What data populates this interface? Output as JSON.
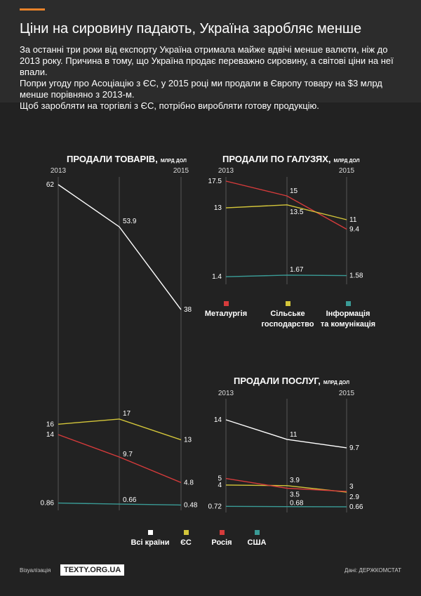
{
  "header": {
    "title": "Ціни на сировину падають, Україна заробляє менше",
    "intro": [
      "За останні три роки від експорту Україна отримала майже вдвічі менше валюти, ніж до 2013 року. Причина в тому, що Україна продає переважно сировину, а світові ціни на неї впали.",
      "Попри угоду про Асоціацію з ЄС, у 2015 році ми продали в Європу товару на $3 млрд менше порівняно з 2013-м.",
      "Щоб заробляти на торгівлі з ЄС, потрібно виробляти готову продукцію."
    ]
  },
  "colors": {
    "accent": "#e8822a",
    "white": "#ffffff",
    "yellow": "#d4c63a",
    "red": "#d63b3b",
    "teal": "#3a9b96"
  },
  "chart_data": [
    {
      "type": "line",
      "title": "ПРОДАЛИ ТОВАРІВ,",
      "unit": "МЛРД ДОЛ",
      "x": [
        "2013",
        "2014",
        "2015"
      ],
      "x_labels": [
        "2013",
        "",
        "2015"
      ],
      "ylim": [
        0,
        64
      ],
      "series": [
        {
          "name": "Всі країни",
          "color": "#ffffff",
          "values": [
            62,
            53.9,
            38
          ]
        },
        {
          "name": "ЄС",
          "color": "#d4c63a",
          "values": [
            16,
            17,
            13
          ]
        },
        {
          "name": "Росія",
          "color": "#d63b3b",
          "values": [
            14,
            9.7,
            4.8
          ]
        },
        {
          "name": "США",
          "color": "#3a9b96",
          "values": [
            0.86,
            0.66,
            0.48
          ]
        }
      ]
    },
    {
      "type": "line",
      "title": "ПРОДАЛИ ПО ГАЛУЗЯХ,",
      "unit": "МЛРД ДОЛ",
      "x": [
        "2013",
        "2014",
        "2015"
      ],
      "x_labels": [
        "2013",
        "",
        "2015"
      ],
      "ylim": [
        0,
        18.5
      ],
      "series": [
        {
          "name": "Металургія",
          "color": "#d63b3b",
          "values": [
            17.5,
            15,
            9.4
          ]
        },
        {
          "name": "Сільське господарство",
          "color": "#d4c63a",
          "values": [
            13,
            13.5,
            11
          ]
        },
        {
          "name": "Інформація та комунікація",
          "color": "#3a9b96",
          "values": [
            1.4,
            1.67,
            1.58
          ]
        }
      ],
      "legend": [
        {
          "lines": [
            "Металургія"
          ],
          "color": "#d63b3b"
        },
        {
          "lines": [
            "Сільське",
            "господарство"
          ],
          "color": "#d4c63a"
        },
        {
          "lines": [
            "Інформація",
            "та комунікація"
          ],
          "color": "#3a9b96"
        }
      ]
    },
    {
      "type": "line",
      "title": "ПРОДАЛИ ПОСЛУГ,",
      "unit": "МЛРД ДОЛ",
      "x": [
        "2013",
        "2014",
        "2015"
      ],
      "x_labels": [
        "2013",
        "",
        "2015"
      ],
      "ylim": [
        0,
        15
      ],
      "series": [
        {
          "name": "Всі країни",
          "color": "#ffffff",
          "values": [
            14,
            11,
            9.7
          ]
        },
        {
          "name": "ЄС",
          "color": "#d4c63a",
          "values": [
            4,
            3.9,
            2.9
          ]
        },
        {
          "name": "Росія",
          "color": "#d63b3b",
          "values": [
            5,
            3.5,
            3
          ]
        },
        {
          "name": "США",
          "color": "#3a9b96",
          "values": [
            0.72,
            0.68,
            0.66
          ]
        }
      ]
    }
  ],
  "bottom_legend": [
    {
      "label": "Всі країни",
      "color": "#ffffff"
    },
    {
      "label": "ЄС",
      "color": "#d4c63a"
    },
    {
      "label": "Росія",
      "color": "#d63b3b"
    },
    {
      "label": "США",
      "color": "#3a9b96"
    }
  ],
  "footer": {
    "viz_label": "Візуалізація",
    "logo": "TEXTY.ORG.UA",
    "source": "Дані: ДЕРЖКОМСТАТ"
  }
}
